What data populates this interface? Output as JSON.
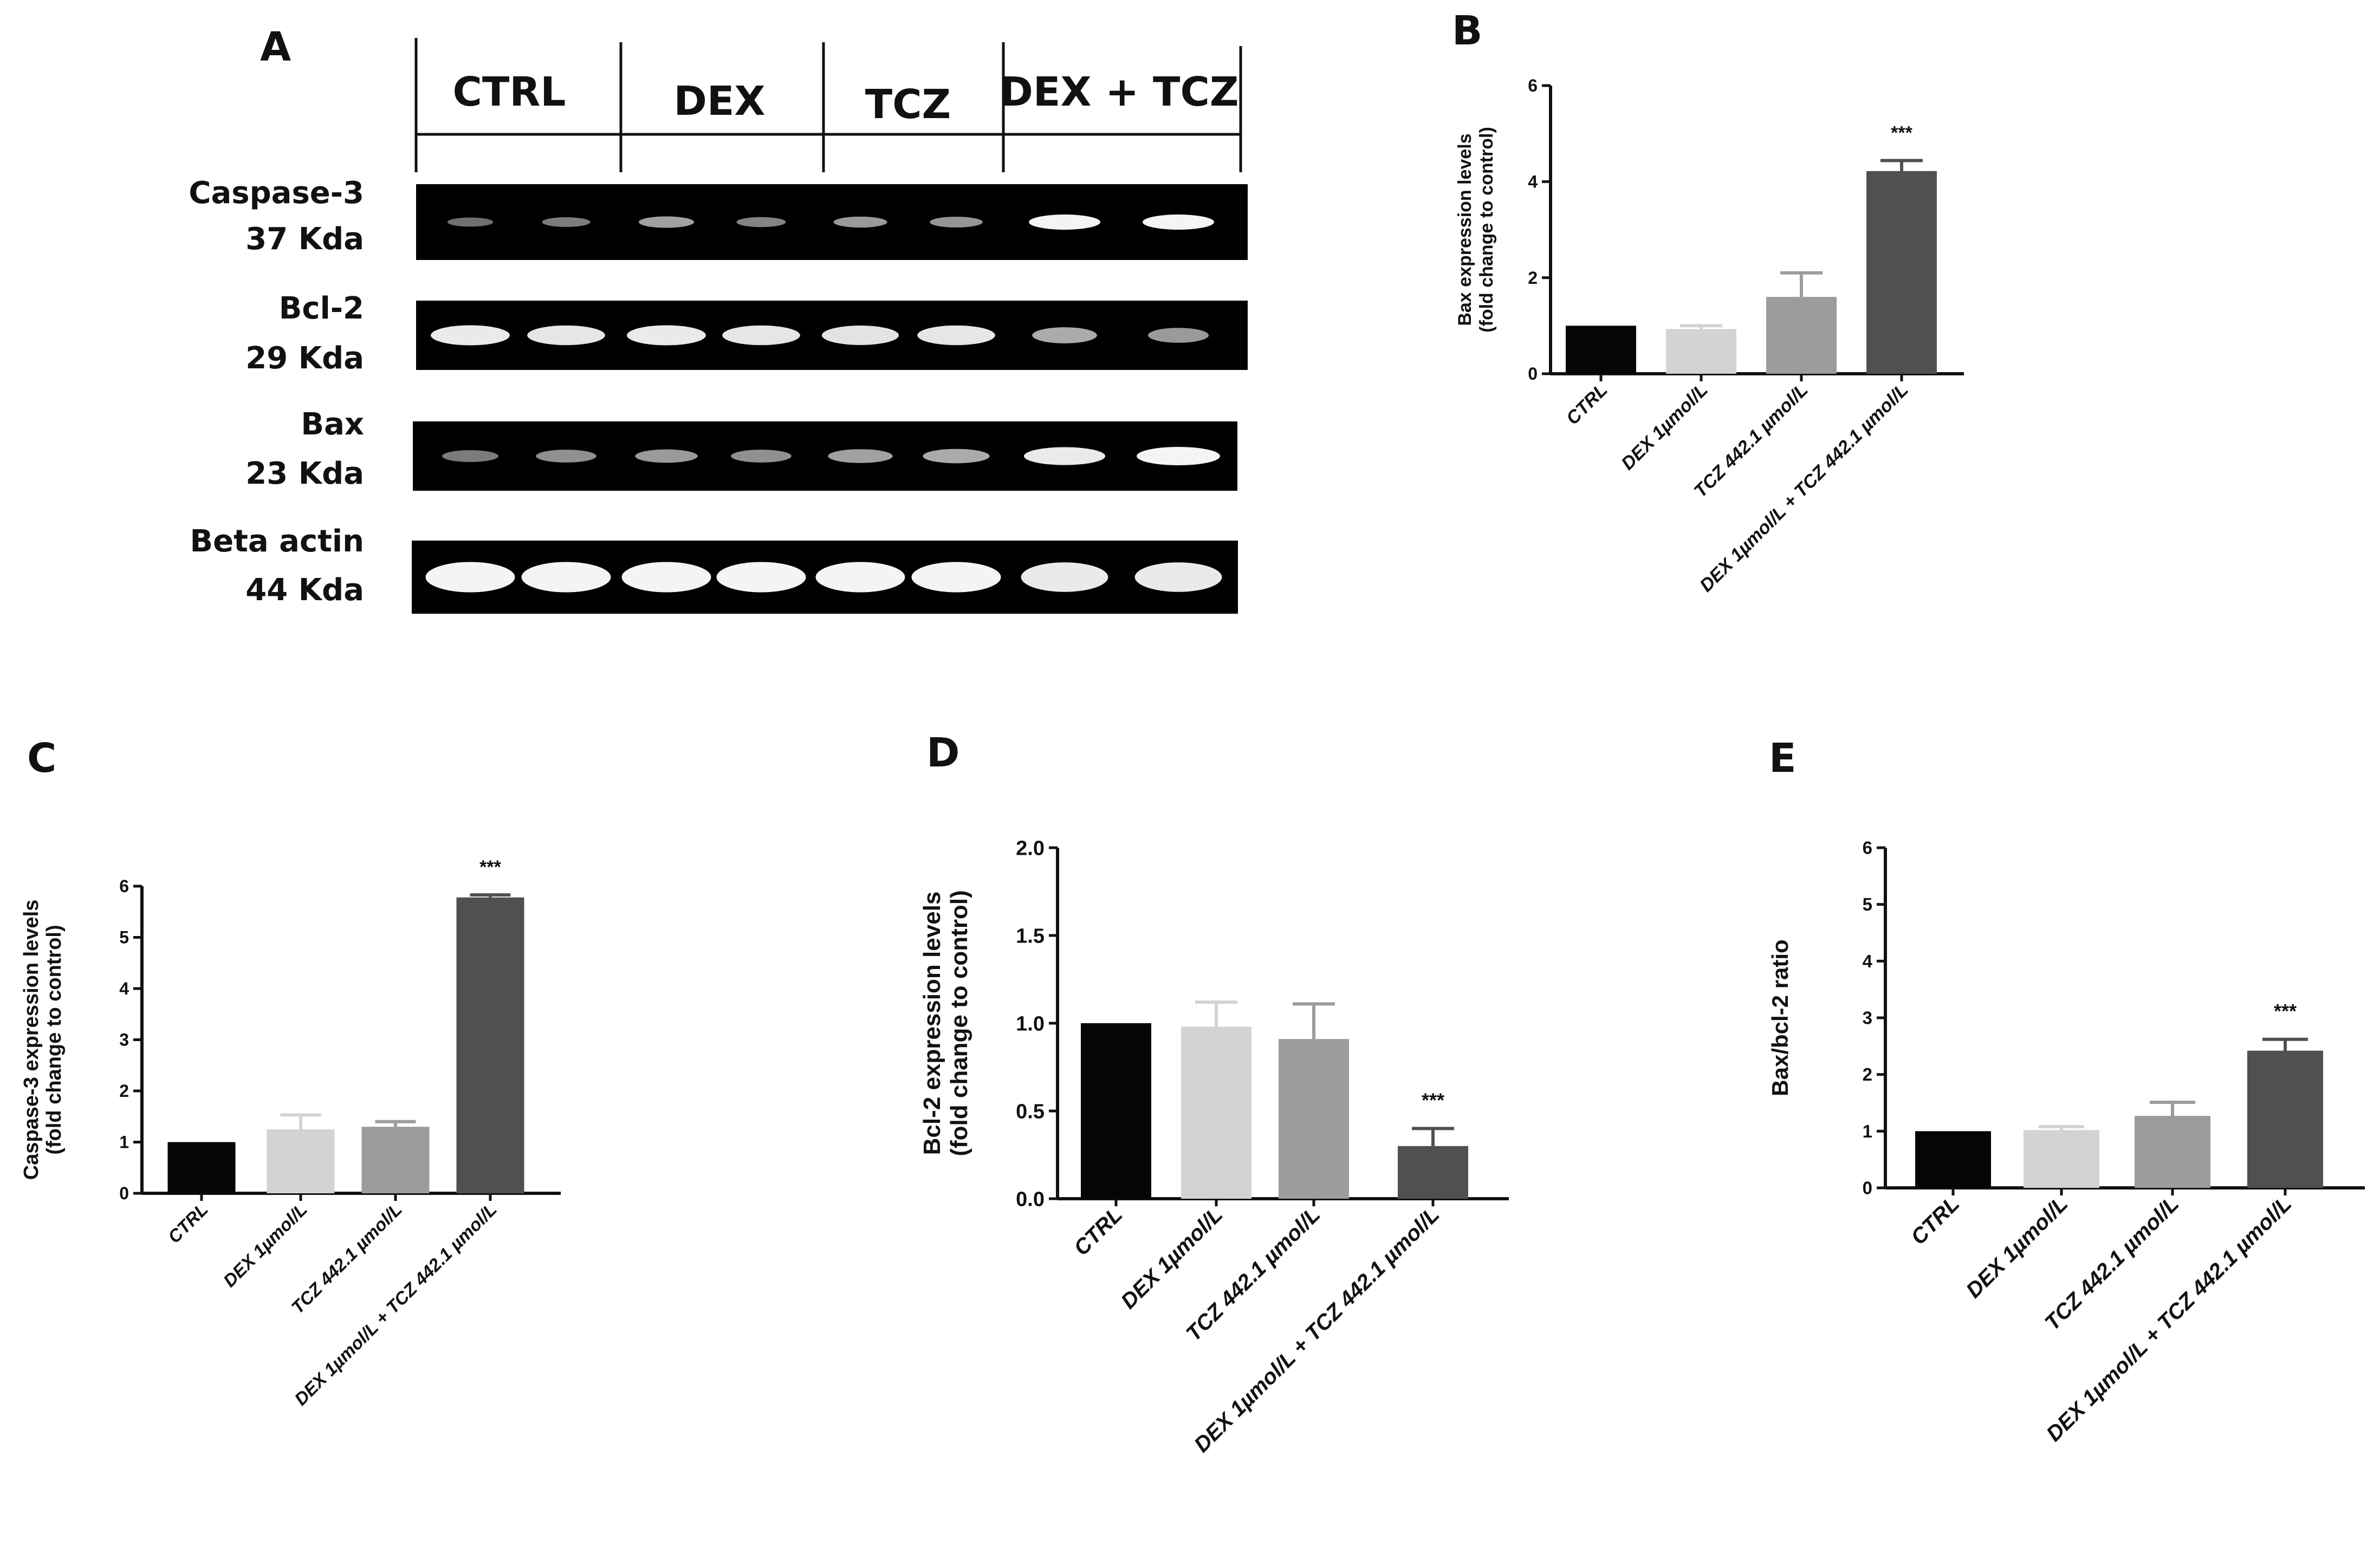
{
  "panels": {
    "A": "A",
    "B": "B",
    "C": "C",
    "D": "D",
    "E": "E"
  },
  "blot": {
    "groups": [
      "CTRL",
      "DEX",
      "TCZ",
      "DEX + TCZ"
    ],
    "rows": [
      {
        "protein": "Caspase-3",
        "size": "37 Kda",
        "intensity": [
          0.28,
          0.35,
          0.55,
          0.38,
          0.5,
          0.48,
          1.0,
          1.0
        ]
      },
      {
        "protein": "Bcl-2",
        "size": "29 Kda",
        "intensity": [
          0.95,
          0.92,
          0.95,
          0.92,
          0.9,
          0.92,
          0.6,
          0.5
        ]
      },
      {
        "protein": "Bax",
        "size": "23 Kda",
        "intensity": [
          0.35,
          0.45,
          0.5,
          0.45,
          0.55,
          0.6,
          0.95,
          1.0
        ]
      },
      {
        "protein": "Beta actin",
        "size": "44 Kda",
        "intensity": [
          1.0,
          1.0,
          1.0,
          1.0,
          1.0,
          1.0,
          0.95,
          0.95
        ]
      }
    ]
  },
  "colors": {
    "bars": [
      "#050505",
      "#d3d3d3",
      "#9c9c9c",
      "#505050"
    ],
    "axis": "#111111",
    "blot_bg": "#000000",
    "band": "#f4f4f4"
  },
  "chart_data": [
    {
      "panel": "B",
      "type": "bar",
      "categories": [
        "CTRL",
        "DEX 1µmol/L",
        "TCZ 442.1 µmol/L",
        "DEX 1µmol/L + TCZ 442.1 µmol/L"
      ],
      "values": [
        1.0,
        0.93,
        1.6,
        4.22
      ],
      "errors": [
        0.0,
        0.07,
        0.5,
        0.22
      ],
      "significance": [
        "",
        "",
        "",
        "***"
      ],
      "ylabel": [
        "Bax expression levels",
        "(fold change to control)"
      ],
      "ylim": [
        0,
        6
      ],
      "yticks": [
        "0",
        "2",
        "4",
        "6"
      ]
    },
    {
      "panel": "C",
      "type": "bar",
      "categories": [
        "CTRL",
        "DEX 1µmol/L",
        "TCZ 442.1 µmol/L",
        "DEX 1µmol/L + TCZ 442.1 µmol/L"
      ],
      "values": [
        1.0,
        1.25,
        1.3,
        5.78
      ],
      "errors": [
        0.0,
        0.28,
        0.1,
        0.05
      ],
      "significance": [
        "",
        "",
        "",
        "***"
      ],
      "ylabel": [
        "Caspase-3 expression levels",
        "(fold change to control)"
      ],
      "ylim": [
        0,
        6
      ],
      "yticks": [
        "0",
        "1",
        "2",
        "3",
        "4",
        "5",
        "6"
      ]
    },
    {
      "panel": "D",
      "type": "bar",
      "categories": [
        "CTRL",
        "DEX 1µmol/L",
        "TCZ 442.1 µmol/L",
        "DEX 1µmol/L + TCZ 442.1 µmol/L"
      ],
      "values": [
        1.0,
        0.98,
        0.91,
        0.3
      ],
      "errors": [
        0.0,
        0.14,
        0.2,
        0.1
      ],
      "significance": [
        "",
        "",
        "",
        "***"
      ],
      "ylabel": [
        "Bcl-2 expression levels",
        "(fold change to control)"
      ],
      "ylim": [
        0,
        2
      ],
      "yticks": [
        "0.0",
        "0.5",
        "1.0",
        "1.5",
        "2.0"
      ]
    },
    {
      "panel": "E",
      "type": "bar",
      "categories": [
        "CTRL",
        "DEX 1µmol/L",
        "TCZ 442.1 µmol/L",
        "DEX 1µmol/L + TCZ 442.1 µmol/L"
      ],
      "values": [
        1.0,
        1.02,
        1.27,
        2.42
      ],
      "errors": [
        0.0,
        0.06,
        0.24,
        0.2
      ],
      "significance": [
        "",
        "",
        "",
        "***"
      ],
      "ylabel": [
        "Bax/bcl-2 ratio"
      ],
      "ylim": [
        0,
        6
      ],
      "yticks": [
        "0",
        "1",
        "2",
        "3",
        "4",
        "5",
        "6"
      ]
    }
  ]
}
